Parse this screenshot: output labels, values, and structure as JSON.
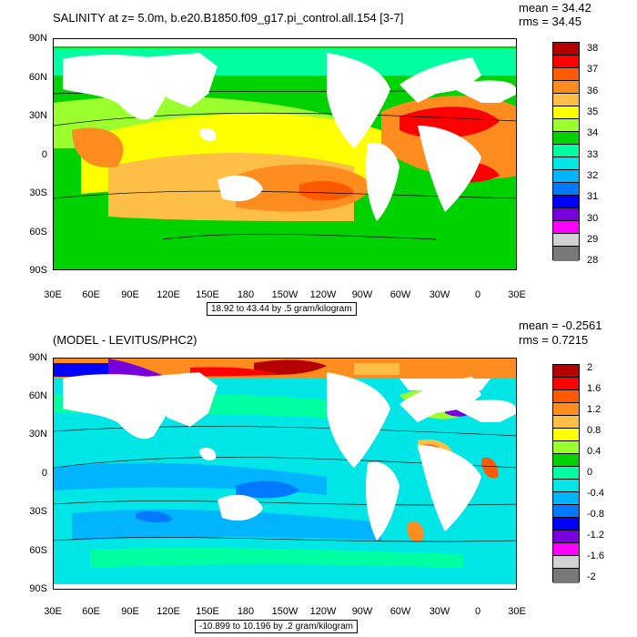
{
  "top": {
    "title": "SALINITY at z=    5.0m, b.e20.B1850.f09_g17.pi_control.all.154 [3-7]",
    "mean": "mean = 34.42",
    "rms": "rms = 34.45",
    "range": "18.92 to 43.44 by .5 gram/kilogram",
    "colorbar_labels": [
      "38",
      "37",
      "36",
      "35",
      "34",
      "33",
      "32",
      "31",
      "30",
      "29",
      "28"
    ],
    "colors": [
      "#b40000",
      "#ff0000",
      "#ff5a00",
      "#ff8c1e",
      "#ffbe46",
      "#ffff00",
      "#9bff2d",
      "#00d200",
      "#00ffa0",
      "#00e6e6",
      "#00b4ff",
      "#0078ff",
      "#0000ff",
      "#7800dc",
      "#ff00ff",
      "#d2d2d2",
      "#787878"
    ]
  },
  "bottom": {
    "title": "(MODEL - LEVITUS/PHC2)",
    "mean": "mean = -0.2561",
    "rms": "rms = 0.7215",
    "range": "-10.899 to 10.196 by .2 gram/kilogram",
    "colorbar_labels": [
      "2",
      "1.6",
      "1.2",
      "0.8",
      "0.4",
      "0",
      "-0.4",
      "-0.8",
      "-1.2",
      "-1.6",
      "-2"
    ],
    "colors": [
      "#b40000",
      "#ff0000",
      "#ff5a00",
      "#ff8c1e",
      "#ffbe46",
      "#ffff00",
      "#9bff2d",
      "#00d200",
      "#00ffa0",
      "#00e6e6",
      "#00b4ff",
      "#0078ff",
      "#0000ff",
      "#7800dc",
      "#ff00ff",
      "#d2d2d2",
      "#787878"
    ]
  },
  "axes": {
    "lat_labels": [
      "90N",
      "60N",
      "30N",
      "0",
      "30S",
      "60S",
      "90S"
    ],
    "lon_labels": [
      "30E",
      "60E",
      "90E",
      "120E",
      "150E",
      "180",
      "150W",
      "120W",
      "90W",
      "60W",
      "30W",
      "0",
      "30E"
    ]
  }
}
